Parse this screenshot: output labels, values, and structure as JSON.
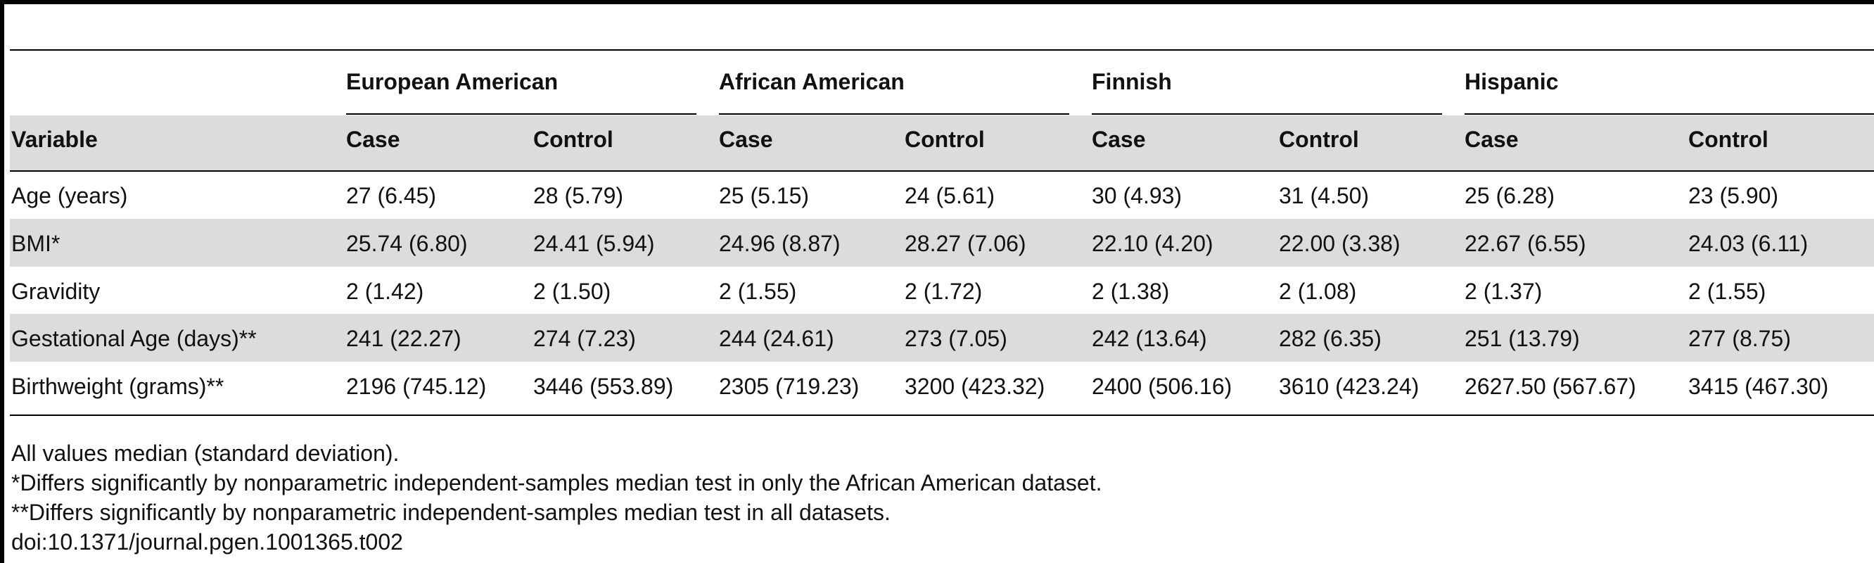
{
  "table": {
    "groups": [
      "European American",
      "African American",
      "Finnish",
      "Hispanic"
    ],
    "header": [
      "Variable",
      "Case",
      "Control",
      "Case",
      "Control",
      "Case",
      "Control",
      "Case",
      "Control"
    ],
    "rows": [
      [
        "Age (years)",
        "27 (6.45)",
        "28 (5.79)",
        "25 (5.15)",
        "24 (5.61)",
        "30 (4.93)",
        "31 (4.50)",
        "25 (6.28)",
        "23 (5.90)"
      ],
      [
        "BMI*",
        "25.74 (6.80)",
        "24.41 (5.94)",
        "24.96 (8.87)",
        "28.27 (7.06)",
        "22.10 (4.20)",
        "22.00 (3.38)",
        "22.67 (6.55)",
        "24.03 (6.11)"
      ],
      [
        "Gravidity",
        "2 (1.42)",
        "2 (1.50)",
        "2 (1.55)",
        "2 (1.72)",
        "2 (1.38)",
        "2 (1.08)",
        "2 (1.37)",
        "2 (1.55)"
      ],
      [
        "Gestational Age (days)**",
        "241 (22.27)",
        "274 (7.23)",
        "244 (24.61)",
        "273 (7.05)",
        "242 (13.64)",
        "282 (6.35)",
        "251 (13.79)",
        "277 (8.75)"
      ],
      [
        "Birthweight (grams)**",
        "2196 (745.12)",
        "3446 (553.89)",
        "2305 (719.23)",
        "3200 (423.32)",
        "2400 (506.16)",
        "3610 (423.24)",
        "2627.50 (567.67)",
        "3415 (467.30)"
      ]
    ]
  },
  "footnotes": [
    "All values median (standard deviation).",
    "*Differs significantly by nonparametric independent-samples median test in only the African American dataset.",
    "**Differs significantly by nonparametric independent-samples median test in all datasets.",
    "doi:10.1371/journal.pgen.1001365.t002"
  ],
  "colors": {
    "band": "#dcdcdc",
    "rule": "#000000",
    "text": "#111111"
  }
}
